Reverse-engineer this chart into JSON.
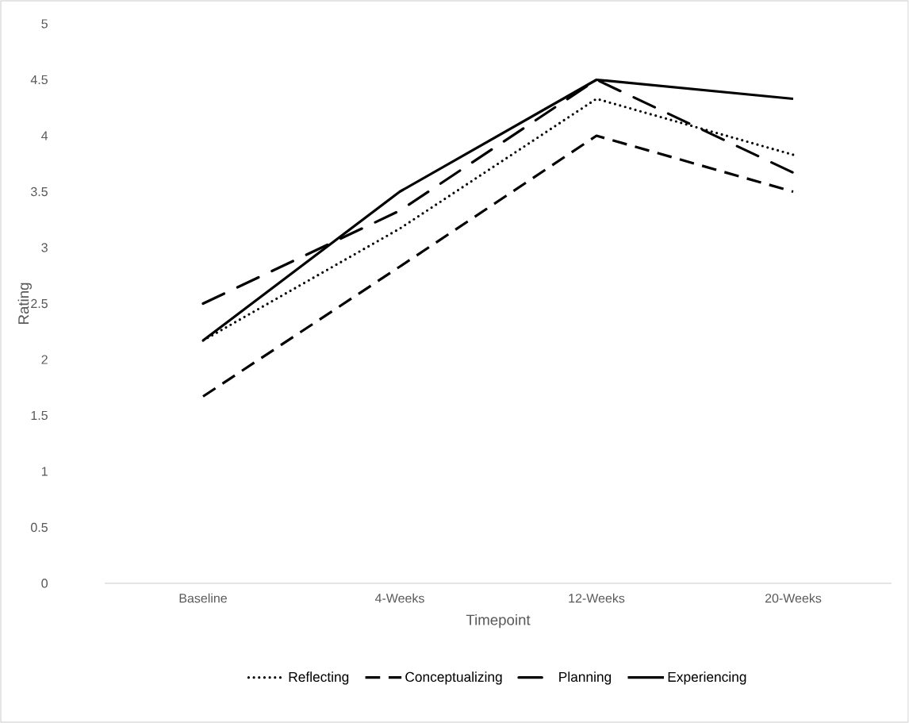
{
  "chart_data": {
    "type": "line",
    "xlabel": "Timepoint",
    "ylabel": "Rating",
    "categories": [
      "Baseline",
      "4-Weeks",
      "12-Weeks",
      "20-Weeks"
    ],
    "series": [
      {
        "name": "Reflecting",
        "color": "#000000",
        "line_style": "dotted",
        "values": [
          2.17,
          3.17,
          4.33,
          3.83
        ]
      },
      {
        "name": "Conceptualizing",
        "color": "#000000",
        "line_style": "dashed",
        "values": [
          1.67,
          2.83,
          4.0,
          3.5
        ]
      },
      {
        "name": "Planning",
        "color": "#000000",
        "line_style": "dashdot",
        "values": [
          2.5,
          3.33,
          4.5,
          3.67
        ]
      },
      {
        "name": "Experiencing",
        "color": "#000000",
        "line_style": "solid",
        "values": [
          2.17,
          3.5,
          4.5,
          4.33
        ]
      }
    ],
    "ylim": [
      0,
      5
    ],
    "yticks": [
      0,
      0.5,
      1,
      1.5,
      2,
      2.5,
      3,
      3.5,
      4,
      4.5,
      5
    ],
    "grid": false,
    "legend": "bottom",
    "marker": "none"
  }
}
